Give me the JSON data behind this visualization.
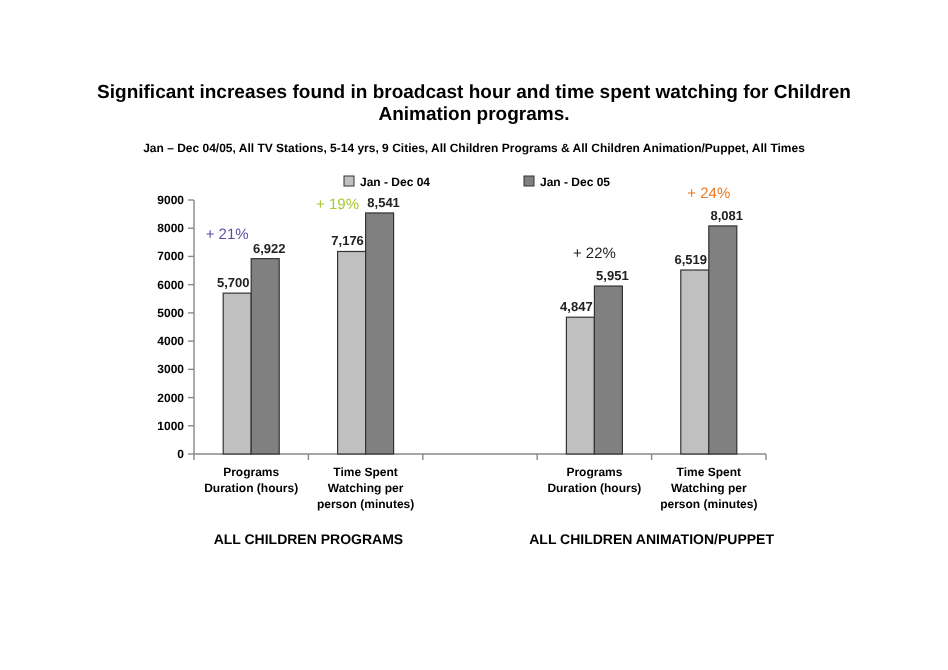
{
  "chart_data": {
    "type": "bar",
    "title": "Significant increases found in broadcast hour and time spent watching for Children Animation programs.",
    "subtitle": "Jan – Dec 04/05, All TV Stations, 5-14 yrs, 9 Cities, All Children Programs & All Children Animation/Puppet, All Times",
    "categories": [
      "Programs Duration (hours)",
      "Time Spent Watching per person (minutes)",
      null,
      "Programs Duration (hours)",
      "Time Spent Watching per person (minutes)"
    ],
    "series": [
      {
        "name": "Jan - Dec 04",
        "color": "#c0c0c0",
        "values": [
          5700,
          7176,
          null,
          4847,
          6519
        ],
        "value_labels": [
          "5,700",
          "7,176",
          null,
          "4,847",
          "6,519"
        ]
      },
      {
        "name": "Jan - Dec 05",
        "color": "#808080",
        "values": [
          6922,
          8541,
          null,
          5951,
          8081
        ],
        "value_labels": [
          "6,922",
          "8,541",
          null,
          "5,951",
          "8,081"
        ]
      }
    ],
    "ylim": [
      0,
      9000
    ],
    "yticks": [
      0,
      1000,
      2000,
      3000,
      4000,
      5000,
      6000,
      7000,
      8000,
      9000
    ],
    "legend": "top",
    "grid": false,
    "annotations": [
      "+ 21%",
      "+ 19%",
      "+ 22%",
      "+ 24%",
      "ALL CHILDREN PROGRAMS",
      "ALL CHILDREN ANIMATION/PUPPET"
    ]
  }
}
